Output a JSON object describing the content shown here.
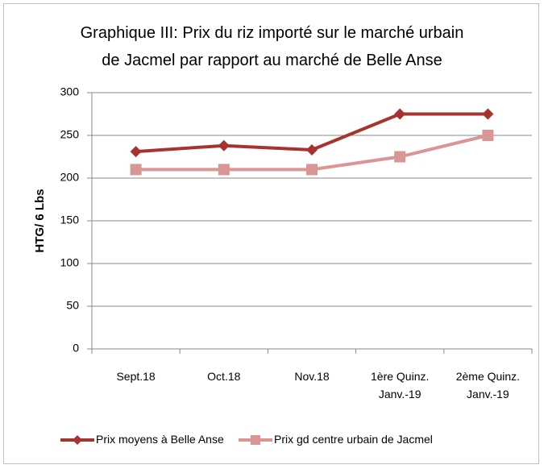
{
  "chart_data": {
    "type": "line",
    "title": [
      "Graphique III: Prix du riz importé sur le marché urbain",
      "de Jacmel par rapport au marché de Belle Anse"
    ],
    "ylabel": "HTG/ 6 Lbs",
    "categories": [
      "Sept.18",
      "Oct.18",
      "Nov.18",
      "1ère  Quinz. Janv.-19",
      "2ème  Quinz. Janv.-19"
    ],
    "series": [
      {
        "name": "Prix moyens à Belle Anse",
        "color": "#a8322d",
        "marker": "diamond",
        "values": [
          231,
          238,
          233,
          275,
          275
        ]
      },
      {
        "name": "Prix gd centre urbain de Jacmel",
        "color": "#d99694",
        "marker": "square",
        "values": [
          210,
          210,
          210,
          225,
          250
        ]
      }
    ],
    "ylim": [
      0,
      300
    ],
    "yticks": [
      0,
      50,
      100,
      150,
      200,
      250,
      300
    ],
    "grid": true,
    "legend": "bottom"
  }
}
